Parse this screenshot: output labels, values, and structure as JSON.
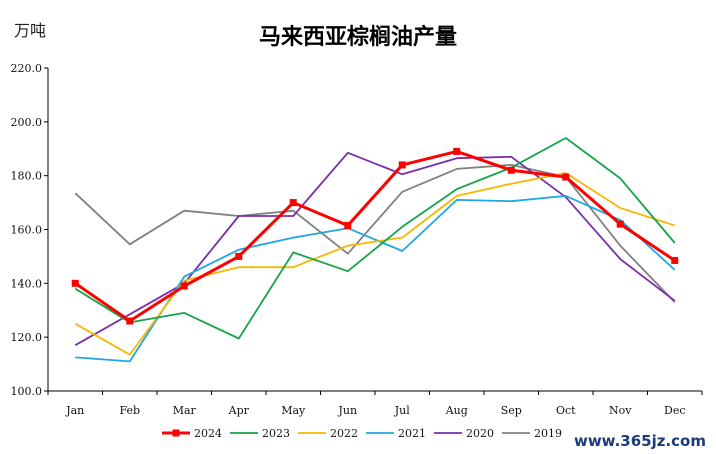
{
  "chart_data": {
    "type": "line",
    "title": "马来西亚棕榈油产量",
    "ylabel": "万吨",
    "xlabel": "",
    "categories": [
      "Jan",
      "Feb",
      "Mar",
      "Apr",
      "May",
      "Jun",
      "Jul",
      "Aug",
      "Sep",
      "Oct",
      "Nov",
      "Dec"
    ],
    "ylim": [
      100,
      220
    ],
    "yticks": [
      "100.0",
      "120.0",
      "140.0",
      "160.0",
      "180.0",
      "200.0",
      "220.0"
    ],
    "ytick_values": [
      100,
      120,
      140,
      160,
      180,
      200,
      220
    ],
    "legend_position": "bottom",
    "grid": false,
    "series": [
      {
        "name": "2024",
        "color": "#ff0000",
        "markers": true,
        "values": [
          140.0,
          126.0,
          139.0,
          150.0,
          170.0,
          161.5,
          184.0,
          189.0,
          182.0,
          179.5,
          162.0,
          148.5
        ]
      },
      {
        "name": "2023",
        "color": "#16a34a",
        "markers": false,
        "values": [
          138.0,
          125.5,
          129.0,
          119.5,
          151.5,
          144.5,
          161.0,
          175.0,
          183.0,
          194.0,
          179.0,
          155.0
        ]
      },
      {
        "name": "2022",
        "color": "#f5b800",
        "markers": false,
        "values": [
          125.0,
          113.5,
          141.0,
          146.0,
          146.0,
          154.0,
          157.0,
          172.5,
          177.0,
          181.0,
          168.0,
          161.5
        ]
      },
      {
        "name": "2021",
        "color": "#1ea7e1",
        "markers": false,
        "values": [
          112.5,
          111.0,
          142.5,
          152.5,
          157.0,
          160.5,
          152.0,
          171.0,
          170.5,
          172.5,
          163.5,
          145.0
        ]
      },
      {
        "name": "2020",
        "color": "#7b2ea8",
        "markers": false,
        "values": [
          117.0,
          128.5,
          140.0,
          165.0,
          165.0,
          188.5,
          180.5,
          186.5,
          187.0,
          172.0,
          149.0,
          133.5
        ]
      },
      {
        "name": "2019",
        "color": "#808080",
        "markers": false,
        "values": [
          173.5,
          154.5,
          167.0,
          165.0,
          167.0,
          151.0,
          174.0,
          182.5,
          184.0,
          179.5,
          154.0,
          133.0
        ]
      }
    ]
  },
  "watermark": "www.365jz.com"
}
